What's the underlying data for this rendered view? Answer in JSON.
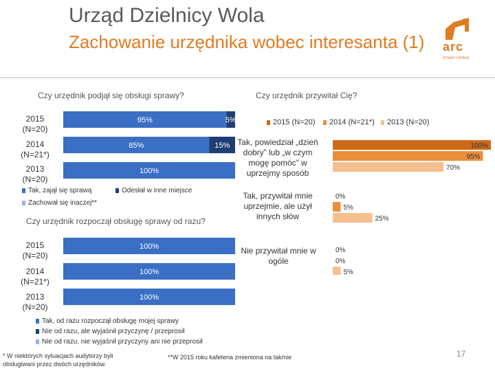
{
  "slide": {
    "title": "Urząd Dzielnicy Wola",
    "subtitle": "Zachowanie urzędnika wobec interesanta (1)",
    "page_number": "17",
    "logo_text": "arc",
    "logo_tagline": "RYNEK I OPINIA"
  },
  "footnotes": {
    "left": "* W niektórych sytuacjach audytorzy byli obsługiwani przez dwóch urzędników.",
    "right": "**W 2015 roku kafeteria zmieniona na tak/nie"
  },
  "colors": {
    "blue": "#3a6fc4",
    "dark_blue": "#1f3f73",
    "orange_dark": "#cc6a1a",
    "orange_mid": "#ea8f3a",
    "orange_light": "#f5c08e"
  },
  "chart_data": [
    {
      "type": "bar",
      "stacked": true,
      "orientation": "horizontal",
      "title": "Czy urzędnik podjął się obsługi sprawy?",
      "categories": [
        "2015\n(N=20)",
        "2014\n(N=21*)",
        "2013\n(N=20)"
      ],
      "series": [
        {
          "name": "Tak, zajął się sprawą",
          "values": [
            95,
            85,
            100
          ],
          "labels": [
            "95%",
            "85%",
            "100%"
          ]
        },
        {
          "name": "Odesłał w inne miejsce",
          "values": [
            5,
            15,
            0
          ],
          "labels": [
            "5%",
            "15%",
            ""
          ]
        },
        {
          "name": "Zachował się inaczej**",
          "values": [
            0,
            0,
            0
          ],
          "labels": [
            "",
            "",
            ""
          ]
        }
      ],
      "xlim": [
        0,
        100
      ]
    },
    {
      "type": "bar",
      "stacked": true,
      "orientation": "horizontal",
      "title": "Czy urzędnik rozpoczął obsługę sprawy od razu?",
      "categories": [
        "2015\n(N=20)",
        "2014\n(N=21*)",
        "2013\n(N=20)"
      ],
      "series": [
        {
          "name": "Tak, od razu rozpoczął obsługę mojej sprawy",
          "values": [
            100,
            100,
            100
          ],
          "labels": [
            "100%",
            "100%",
            "100%"
          ]
        },
        {
          "name": "Nie od razu, ale wyjaśnił przyczynę / przeprosił",
          "values": [
            0,
            0,
            0
          ],
          "labels": [
            "",
            "",
            ""
          ]
        },
        {
          "name": "Nie od razu, nie wyjaśnił przyczyny ani nie przeprosił",
          "values": [
            0,
            0,
            0
          ],
          "labels": [
            "",
            "",
            ""
          ]
        }
      ],
      "xlim": [
        0,
        100
      ]
    },
    {
      "type": "bar",
      "orientation": "horizontal",
      "title": "Czy urzędnik przywitał Cię?",
      "categories": [
        "Tak, powiedział „dzień dobry” lub „w czym mogę pomóc” w uprzejmy sposób",
        "Tak, przywitał mnie uprzejmie, ale użył innych słów",
        "Nie przywitał mnie w ogóle"
      ],
      "series": [
        {
          "name": "2015 (N=20)",
          "values": [
            100,
            0,
            0
          ],
          "labels": [
            "100%",
            "0%",
            "0%"
          ]
        },
        {
          "name": "2014 (N=21*)",
          "values": [
            95,
            5,
            0
          ],
          "labels": [
            "95%",
            "5%",
            "0%"
          ]
        },
        {
          "name": "2013 (N=20)",
          "values": [
            70,
            25,
            5
          ],
          "labels": [
            "70%",
            "25%",
            "5%"
          ]
        }
      ],
      "xlim": [
        0,
        100
      ]
    }
  ]
}
